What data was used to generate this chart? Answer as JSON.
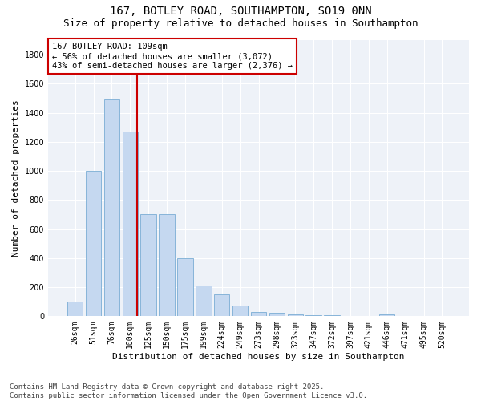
{
  "title_line1": "167, BOTLEY ROAD, SOUTHAMPTON, SO19 0NN",
  "title_line2": "Size of property relative to detached houses in Southampton",
  "xlabel": "Distribution of detached houses by size in Southampton",
  "ylabel": "Number of detached properties",
  "categories": [
    "26sqm",
    "51sqm",
    "76sqm",
    "100sqm",
    "125sqm",
    "150sqm",
    "175sqm",
    "199sqm",
    "224sqm",
    "249sqm",
    "273sqm",
    "298sqm",
    "323sqm",
    "347sqm",
    "372sqm",
    "397sqm",
    "421sqm",
    "446sqm",
    "471sqm",
    "495sqm",
    "520sqm"
  ],
  "values": [
    100,
    1000,
    1490,
    1270,
    700,
    700,
    400,
    210,
    150,
    75,
    30,
    25,
    15,
    10,
    5,
    0,
    0,
    15,
    0,
    0,
    0
  ],
  "bar_color": "#c5d8f0",
  "bar_edge_color": "#7aadd4",
  "vline_position": 3.4,
  "vline_color": "#cc0000",
  "annotation_text": "167 BOTLEY ROAD: 109sqm\n← 56% of detached houses are smaller (3,072)\n43% of semi-detached houses are larger (2,376) →",
  "annotation_box_facecolor": "#ffffff",
  "annotation_box_edgecolor": "#cc0000",
  "ylim_max": 1900,
  "yticks": [
    0,
    200,
    400,
    600,
    800,
    1000,
    1200,
    1400,
    1600,
    1800
  ],
  "bg_color": "#eef2f8",
  "grid_color": "#ffffff",
  "footer_line1": "Contains HM Land Registry data © Crown copyright and database right 2025.",
  "footer_line2": "Contains public sector information licensed under the Open Government Licence v3.0.",
  "title_fontsize": 10,
  "subtitle_fontsize": 9,
  "axis_label_fontsize": 8,
  "tick_fontsize": 7,
  "annotation_fontsize": 7.5,
  "footer_fontsize": 6.5
}
